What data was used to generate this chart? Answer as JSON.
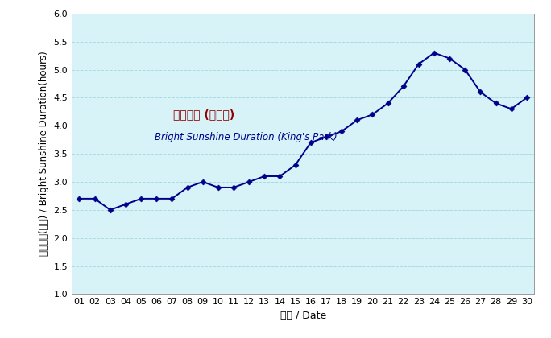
{
  "days": [
    1,
    2,
    3,
    4,
    5,
    6,
    7,
    8,
    9,
    10,
    11,
    12,
    13,
    14,
    15,
    16,
    17,
    18,
    19,
    20,
    21,
    22,
    23,
    24,
    25,
    26,
    27,
    28,
    29,
    30
  ],
  "values": [
    2.7,
    2.7,
    2.5,
    2.6,
    2.7,
    2.7,
    2.7,
    2.9,
    3.0,
    2.9,
    2.9,
    3.0,
    3.1,
    3.1,
    3.3,
    3.7,
    3.8,
    3.9,
    4.1,
    4.2,
    4.4,
    4.7,
    5.1,
    5.3,
    5.2,
    5.0,
    4.6,
    4.4,
    4.3,
    4.5
  ],
  "x_tick_labels": [
    "01",
    "02",
    "03",
    "04",
    "05",
    "06",
    "07",
    "08",
    "09",
    "10",
    "11",
    "12",
    "13",
    "14",
    "15",
    "16",
    "17",
    "18",
    "19",
    "20",
    "21",
    "22",
    "23",
    "24",
    "25",
    "26",
    "27",
    "28",
    "29",
    "30"
  ],
  "y_ticks": [
    1.0,
    1.5,
    2.0,
    2.5,
    3.0,
    3.5,
    4.0,
    4.5,
    5.0,
    5.5,
    6.0
  ],
  "ylim": [
    1.0,
    6.0
  ],
  "xlabel_zh": "日期",
  "xlabel_en": "Date",
  "ylabel_zh": "平均日照(小時)",
  "ylabel_en": "Bright Sunshine Duration(hours)",
  "label_chinese": "平均日照 (京士柏)",
  "label_english": "Bright Sunshine Duration (King's Park)",
  "line_color": "#00008B",
  "marker": "D",
  "marker_size": 3.5,
  "bg_color": "#D8F3F8",
  "grid_color": "#A8D8E0",
  "axis_label_fontsize": 9,
  "tick_fontsize": 8,
  "annotation_chinese_color": "#8B0000",
  "annotation_english_color": "#00008B",
  "fig_bg": "#ffffff"
}
